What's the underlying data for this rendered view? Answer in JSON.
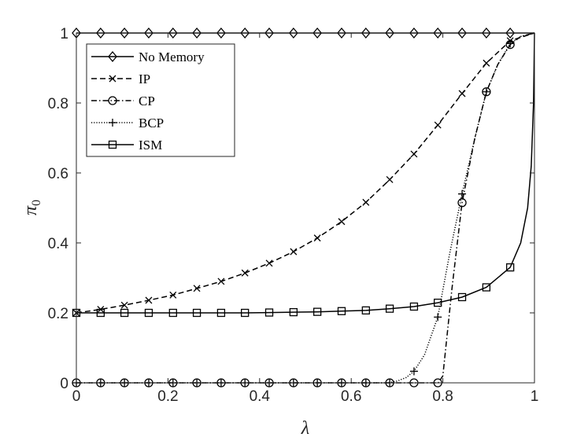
{
  "chart_data": {
    "type": "line",
    "title": "",
    "xlabel": "λ",
    "ylabel": "π",
    "ylabel_subscript": "0",
    "xlim": [
      0,
      1
    ],
    "ylim": [
      0,
      1
    ],
    "x_ticks": [
      "0",
      "0.2",
      "0.4",
      "0.6",
      "0.8",
      "1"
    ],
    "y_ticks": [
      "0",
      "0.2",
      "0.4",
      "0.6",
      "0.8",
      "1"
    ],
    "grid": false,
    "legend_position": "top-left",
    "series": [
      {
        "name": "No Memory",
        "line_style": "solid",
        "marker": "diamond",
        "x": [
          0,
          0.2,
          0.4,
          0.6,
          0.8,
          0.95,
          1.0
        ],
        "y": [
          1,
          1,
          1,
          1,
          1,
          1,
          1
        ],
        "marker_x": [
          0,
          0.053,
          0.105,
          0.158,
          0.211,
          0.263,
          0.316,
          0.368,
          0.421,
          0.474,
          0.526,
          0.579,
          0.632,
          0.684,
          0.737,
          0.789,
          0.842,
          0.895,
          0.947
        ],
        "marker_y": [
          1,
          1,
          1,
          1,
          1,
          1,
          1,
          1,
          1,
          1,
          1,
          1,
          1,
          1,
          1,
          1,
          1,
          1,
          1
        ]
      },
      {
        "name": "IP",
        "line_style": "dashed",
        "marker": "x",
        "x": [
          0,
          0.053,
          0.105,
          0.158,
          0.211,
          0.263,
          0.316,
          0.368,
          0.421,
          0.474,
          0.526,
          0.579,
          0.632,
          0.684,
          0.737,
          0.789,
          0.842,
          0.895,
          0.947,
          1.0
        ],
        "y": [
          0.2,
          0.21,
          0.222,
          0.236,
          0.251,
          0.27,
          0.29,
          0.314,
          0.342,
          0.375,
          0.414,
          0.461,
          0.516,
          0.581,
          0.654,
          0.737,
          0.827,
          0.914,
          0.978,
          1.0
        ],
        "marker_x": [
          0,
          0.053,
          0.105,
          0.158,
          0.211,
          0.263,
          0.316,
          0.368,
          0.421,
          0.474,
          0.526,
          0.579,
          0.632,
          0.684,
          0.737,
          0.789,
          0.842,
          0.895,
          0.947
        ],
        "marker_y": [
          0.2,
          0.21,
          0.222,
          0.236,
          0.251,
          0.27,
          0.29,
          0.314,
          0.342,
          0.375,
          0.414,
          0.461,
          0.516,
          0.581,
          0.654,
          0.737,
          0.827,
          0.914,
          0.978
        ]
      },
      {
        "name": "CP",
        "line_style": "dashdot",
        "marker": "circle",
        "x": [
          0,
          0.2,
          0.4,
          0.6,
          0.79,
          0.8,
          0.82,
          0.842,
          0.87,
          0.895,
          0.92,
          0.947,
          0.97,
          1.0
        ],
        "y": [
          0,
          0,
          0,
          0,
          0,
          0.02,
          0.27,
          0.515,
          0.7,
          0.832,
          0.91,
          0.967,
          0.99,
          1.0
        ],
        "marker_x": [
          0,
          0.053,
          0.105,
          0.158,
          0.211,
          0.263,
          0.316,
          0.368,
          0.421,
          0.474,
          0.526,
          0.579,
          0.632,
          0.684,
          0.737,
          0.789,
          0.842,
          0.895,
          0.947
        ],
        "marker_y": [
          0,
          0,
          0,
          0,
          0,
          0,
          0,
          0,
          0,
          0,
          0,
          0,
          0,
          0,
          0,
          0,
          0.515,
          0.832,
          0.967
        ]
      },
      {
        "name": "BCP",
        "line_style": "dotted",
        "marker": "plus",
        "x": [
          0,
          0.2,
          0.4,
          0.6,
          0.68,
          0.7,
          0.72,
          0.737,
          0.76,
          0.789,
          0.815,
          0.842,
          0.87,
          0.895,
          0.92,
          0.947,
          0.97,
          1.0
        ],
        "y": [
          0,
          0,
          0,
          0,
          0,
          0.005,
          0.015,
          0.033,
          0.08,
          0.188,
          0.37,
          0.54,
          0.7,
          0.832,
          0.91,
          0.97,
          0.99,
          1.0
        ],
        "marker_x": [
          0,
          0.053,
          0.105,
          0.158,
          0.211,
          0.263,
          0.316,
          0.368,
          0.421,
          0.474,
          0.526,
          0.579,
          0.632,
          0.684,
          0.737,
          0.789,
          0.842,
          0.895,
          0.947
        ],
        "marker_y": [
          0,
          0,
          0,
          0,
          0,
          0,
          0,
          0,
          0,
          0,
          0,
          0,
          0,
          0,
          0.033,
          0.188,
          0.54,
          0.832,
          0.97
        ]
      },
      {
        "name": "ISM",
        "line_style": "solid",
        "marker": "square",
        "x": [
          0,
          0.053,
          0.105,
          0.158,
          0.211,
          0.263,
          0.316,
          0.368,
          0.421,
          0.474,
          0.526,
          0.579,
          0.632,
          0.684,
          0.737,
          0.789,
          0.842,
          0.895,
          0.947,
          0.97,
          0.985,
          0.993,
          0.998,
          1.0
        ],
        "y": [
          0.2,
          0.2,
          0.2,
          0.2,
          0.2,
          0.2,
          0.2,
          0.2,
          0.201,
          0.202,
          0.203,
          0.205,
          0.207,
          0.212,
          0.218,
          0.229,
          0.245,
          0.273,
          0.33,
          0.4,
          0.5,
          0.62,
          0.8,
          1.0
        ],
        "marker_x": [
          0,
          0.053,
          0.105,
          0.158,
          0.211,
          0.263,
          0.316,
          0.368,
          0.421,
          0.474,
          0.526,
          0.579,
          0.632,
          0.684,
          0.737,
          0.789,
          0.842,
          0.895,
          0.947
        ],
        "marker_y": [
          0.2,
          0.2,
          0.2,
          0.2,
          0.2,
          0.2,
          0.2,
          0.2,
          0.201,
          0.202,
          0.203,
          0.205,
          0.207,
          0.212,
          0.218,
          0.229,
          0.245,
          0.273,
          0.33
        ]
      }
    ]
  }
}
